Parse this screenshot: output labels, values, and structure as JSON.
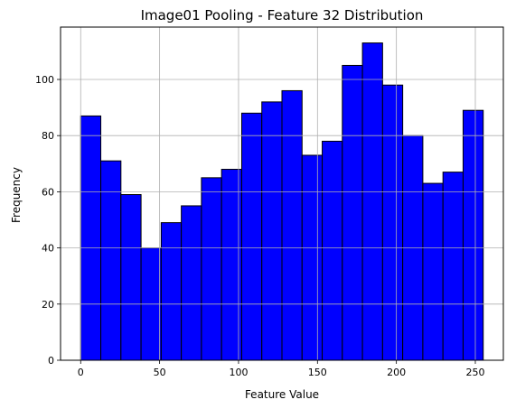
{
  "chart_data": {
    "type": "bar",
    "title": "Image01 Pooling - Feature 32 Distribution",
    "xlabel": "Feature Value",
    "ylabel": "Frequency",
    "xlim": [
      -12.75,
      267.75
    ],
    "ylim": [
      0,
      118.65
    ],
    "bin_edges": [
      0,
      12.75,
      25.5,
      38.25,
      51,
      63.75,
      76.5,
      89.25,
      102,
      114.75,
      127.5,
      140.25,
      153,
      165.75,
      178.5,
      191.25,
      204,
      216.75,
      229.5,
      242.25,
      255
    ],
    "values": [
      87,
      71,
      59,
      40,
      49,
      55,
      65,
      68,
      88,
      92,
      96,
      73,
      78,
      105,
      113,
      98,
      80,
      63,
      67,
      89
    ],
    "xticks": [
      0,
      50,
      100,
      150,
      200,
      250
    ],
    "yticks": [
      0,
      20,
      40,
      60,
      80,
      100
    ],
    "grid": true,
    "bar_color": "#0000ff",
    "edge_color": "#000000",
    "grid_color": "#b0b0b0"
  }
}
